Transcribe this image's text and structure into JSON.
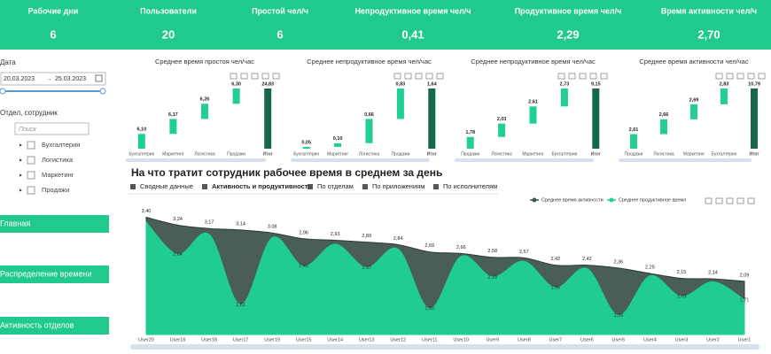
{
  "kpis": [
    {
      "label": "Рабочие дни",
      "value": "6"
    },
    {
      "label": "Пользователи",
      "value": "20"
    },
    {
      "label": "Простой чел/ч",
      "value": "6"
    },
    {
      "label": "Непродуктивное время чел/ч",
      "value": "0,41"
    },
    {
      "label": "Продуктивное время чел/ч",
      "value": "2,29"
    },
    {
      "label": "Время активности чел/ч",
      "value": "2,70"
    }
  ],
  "filters": {
    "date_label": "Дата",
    "date_from": "20.03.2023",
    "date_to": "25.03.2023",
    "dept_label": "Отдел, сотрудник",
    "search_placeholder": "Поиск",
    "departments": [
      "Бухгалтерия",
      "Логистика",
      "Маркетинг",
      "Продажи"
    ]
  },
  "nav": [
    "Главная",
    "Распределение времени",
    "Активность отделов"
  ],
  "section_title": "На что тратит сотрудник рабочее время в среднем за день",
  "tabs": [
    "Сводные данные",
    "Активность и продуктивность",
    "По отделам",
    "По приложениям",
    "По исполнителям"
  ],
  "chart_data": [
    {
      "type": "waterfall",
      "title": "Среднее время простоя чел/час",
      "color": "#1fcf95",
      "total_color": "#16684c",
      "categories": [
        "Бухгалтерия",
        "Маркетинг",
        "Логистика",
        "Продажи",
        "Итог"
      ],
      "values": [
        6.1,
        6.17,
        6.26,
        6.3,
        24.83
      ],
      "value_labels": [
        "6,10",
        "6,17",
        "6,26",
        "6,30",
        "24,83"
      ]
    },
    {
      "type": "waterfall",
      "title": "Среднее непродуктивное время чел/час",
      "color": "#1fcf95",
      "total_color": "#16684c",
      "categories": [
        "Бухгалтерия",
        "Маркетинг",
        "Логистика",
        "Продажи",
        "Итог"
      ],
      "values": [
        0.05,
        0.1,
        0.66,
        0.83,
        1.64
      ],
      "value_labels": [
        "0,05",
        "0,10",
        "0,66",
        "0,83",
        "1,64"
      ]
    },
    {
      "type": "waterfall",
      "title": "Среднее непродуктивное время чел/час",
      "color": "#1fcf95",
      "total_color": "#16684c",
      "categories": [
        "Продажи",
        "Логистика",
        "Маркетинг",
        "Бухгалтерия",
        "Итог"
      ],
      "values": [
        1.78,
        2.03,
        2.61,
        2.73,
        9.15
      ],
      "value_labels": [
        "1,78",
        "2,03",
        "2,61",
        "2,73",
        "9,15"
      ]
    },
    {
      "type": "waterfall",
      "title": "Среднее время активности чел/час",
      "color": "#1fcf95",
      "total_color": "#16684c",
      "categories": [
        "Продажи",
        "Логистика",
        "Маркетинг",
        "Бухгалтерия",
        "Итог"
      ],
      "values": [
        2.61,
        2.66,
        2.69,
        2.83,
        10.79
      ],
      "value_labels": [
        "2,61",
        "2,66",
        "2,69",
        "2,83",
        "10,79"
      ]
    },
    {
      "type": "area",
      "ylim": [
        1,
        3.5
      ],
      "categories": [
        "User20",
        "User16",
        "User18",
        "User17",
        "User19",
        "User15",
        "User14",
        "User13",
        "User12",
        "User11",
        "User10",
        "User9",
        "User8",
        "User7",
        "User6",
        "User5",
        "User4",
        "User3",
        "User2",
        "User1"
      ],
      "series": [
        {
          "name": "Среднее время активности",
          "color": "#3f564c",
          "values": [
            3.4,
            3.24,
            3.17,
            3.14,
            3.08,
            2.96,
            2.93,
            2.89,
            2.84,
            2.69,
            2.66,
            2.58,
            2.57,
            2.42,
            2.42,
            2.36,
            2.25,
            2.15,
            2.14,
            2.09
          ],
          "value_labels": [
            "3,40",
            "3,24",
            "3,17",
            "3,14",
            "3,08",
            "2,96",
            "2,93",
            "2,89",
            "2,84",
            "2,69",
            "2,66",
            "2,58",
            "2,57",
            "2,42",
            "2,42",
            "2,36",
            "2,25",
            "2,15",
            "2,14",
            "2,09"
          ]
        },
        {
          "name": "Среднее продуктивное время",
          "color": "#1fcf95",
          "values": [
            3.3,
            2.64,
            3.05,
            1.61,
            2.98,
            2.4,
            2.85,
            2.37,
            2.75,
            1.53,
            2.6,
            2.18,
            2.5,
            1.96,
            2.35,
            1.39,
            2.2,
            1.78,
            2.08,
            1.71
          ],
          "value_labels": [
            null,
            "2,64",
            null,
            "1,61",
            null,
            "2,40",
            null,
            "2,37",
            null,
            "1,53",
            null,
            "2,18",
            null,
            "1,96",
            null,
            "1,39",
            null,
            "1,78",
            null,
            "1,71"
          ]
        }
      ]
    }
  ]
}
